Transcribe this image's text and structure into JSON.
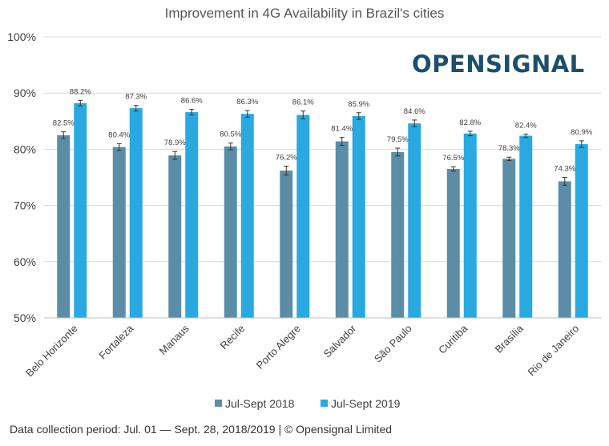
{
  "chart_data": {
    "type": "bar",
    "title": "Improvement in 4G Availability in Brazil's cities",
    "categories": [
      "Belo Horizonte",
      "Fortaleza",
      "Manaus",
      "Recife",
      "Porto Alegre",
      "Salvador",
      "São Paulo",
      "Curitiba",
      "Brasília",
      "Rio de Janeiro"
    ],
    "series": [
      {
        "name": "Jul-Sept 2018",
        "color": "#5b8ea6",
        "values": [
          82.5,
          80.4,
          78.9,
          80.5,
          76.2,
          81.4,
          79.5,
          76.5,
          78.3,
          74.3
        ],
        "labels": [
          "82.5%",
          "80.4%",
          "78.9%",
          "80.5%",
          "76.2%",
          "81.4%",
          "79.5%",
          "76.5%",
          "78.3%",
          "74.3%"
        ],
        "error": [
          0.6,
          0.6,
          0.7,
          0.6,
          0.8,
          0.7,
          0.7,
          0.4,
          0.3,
          0.7
        ]
      },
      {
        "name": "Jul-Sept 2019",
        "color": "#29a9e0",
        "values": [
          88.2,
          87.3,
          86.6,
          86.3,
          86.1,
          85.9,
          84.6,
          82.8,
          82.4,
          80.9
        ],
        "labels": [
          "88.2%",
          "87.3%",
          "86.6%",
          "86.3%",
          "86.1%",
          "85.9%",
          "84.6%",
          "82.8%",
          "82.4%",
          "80.9%"
        ],
        "error": [
          0.5,
          0.5,
          0.5,
          0.6,
          0.7,
          0.6,
          0.6,
          0.4,
          0.3,
          0.6
        ]
      }
    ],
    "yticks": [
      "50%",
      "60%",
      "70%",
      "80%",
      "90%",
      "100%"
    ],
    "ylim": [
      50,
      100
    ],
    "grid": true,
    "legend": "bottom"
  },
  "logo": {
    "text": "OPENSIGNAL"
  },
  "footnote": "Data collection period: Jul. 01 — Sept. 28, 2018/2019 | © Opensignal Limited"
}
